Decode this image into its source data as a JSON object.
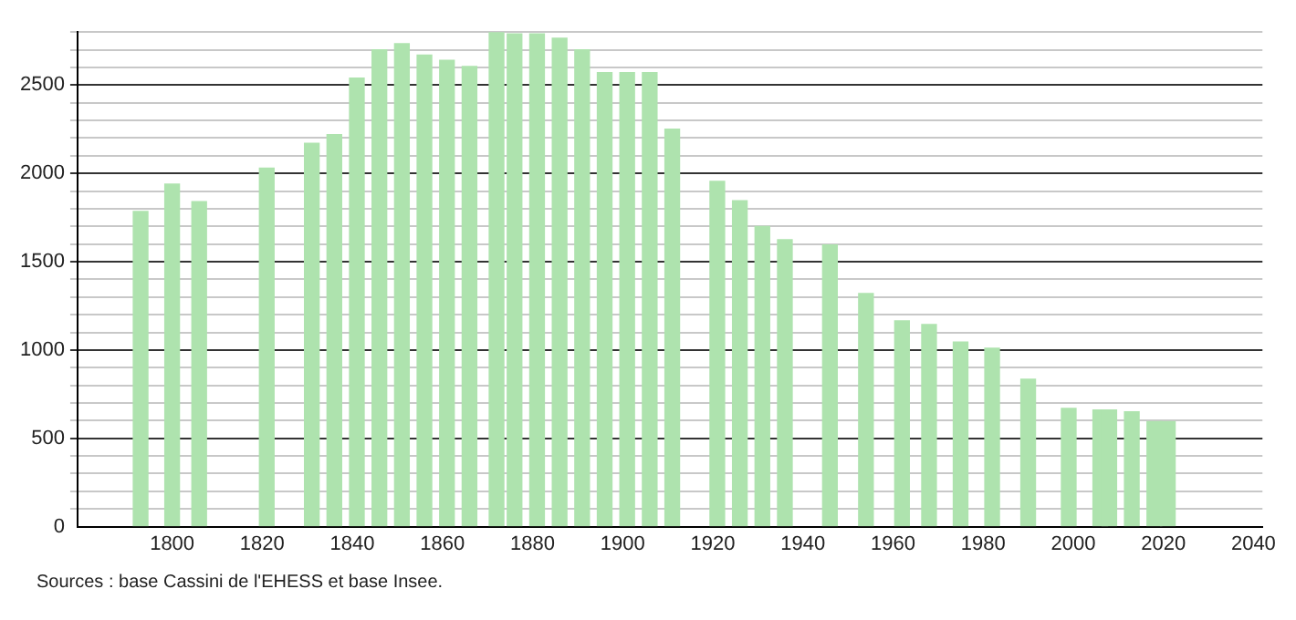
{
  "chart_data": {
    "type": "bar",
    "x": [
      1793,
      1800,
      1806,
      1821,
      1831,
      1836,
      1841,
      1846,
      1851,
      1856,
      1861,
      1866,
      1872,
      1876,
      1881,
      1886,
      1891,
      1896,
      1901,
      1906,
      1911,
      1921,
      1926,
      1931,
      1936,
      1946,
      1954,
      1962,
      1968,
      1975,
      1982,
      1990,
      1999,
      2006,
      2008,
      2013,
      2018,
      2021
    ],
    "values": [
      1785,
      1940,
      1840,
      2030,
      2170,
      2220,
      2540,
      2700,
      2735,
      2670,
      2640,
      2605,
      2800,
      2790,
      2790,
      2765,
      2700,
      2570,
      2570,
      2570,
      2250,
      1955,
      1845,
      1700,
      1625,
      1595,
      1320,
      1165,
      1145,
      1045,
      1010,
      835,
      670,
      660,
      660,
      650,
      595,
      595
    ],
    "color": "#aee3ae",
    "xlim": [
      1779,
      2042
    ],
    "xticks": [
      1800,
      1820,
      1840,
      1860,
      1880,
      1900,
      1920,
      1940,
      1960,
      1980,
      2000,
      2020,
      2040
    ],
    "ylim": [
      0,
      2800
    ],
    "yticks": [
      0,
      {
        "value": 100,
        "label": null
      },
      {
        "value": 200,
        "label": null
      },
      {
        "value": 300,
        "label": null
      },
      {
        "value": 400,
        "label": null
      },
      500,
      {
        "value": 600,
        "label": null
      },
      {
        "value": 700,
        "label": null
      },
      {
        "value": 800,
        "label": null
      },
      {
        "value": 900,
        "label": null
      },
      1000,
      {
        "value": 1100,
        "label": null
      },
      {
        "value": 1200,
        "label": null
      },
      {
        "value": 1300,
        "label": null
      },
      {
        "value": 1400,
        "label": null
      },
      1500,
      {
        "value": 1600,
        "label": null
      },
      {
        "value": 1700,
        "label": null
      },
      {
        "value": 1800,
        "label": null
      },
      {
        "value": 1900,
        "label": null
      },
      2000,
      {
        "value": 2100,
        "label": null
      },
      {
        "value": 2200,
        "label": null
      },
      {
        "value": 2300,
        "label": null
      },
      {
        "value": 2400,
        "label": null
      },
      2500,
      {
        "value": 2600,
        "label": null
      },
      {
        "value": 2700,
        "label": null
      },
      {
        "value": 2800,
        "label": null
      }
    ],
    "grid": "y",
    "annotations": [
      "Sources : base Cassini de l'EHESS et base Insee."
    ]
  }
}
